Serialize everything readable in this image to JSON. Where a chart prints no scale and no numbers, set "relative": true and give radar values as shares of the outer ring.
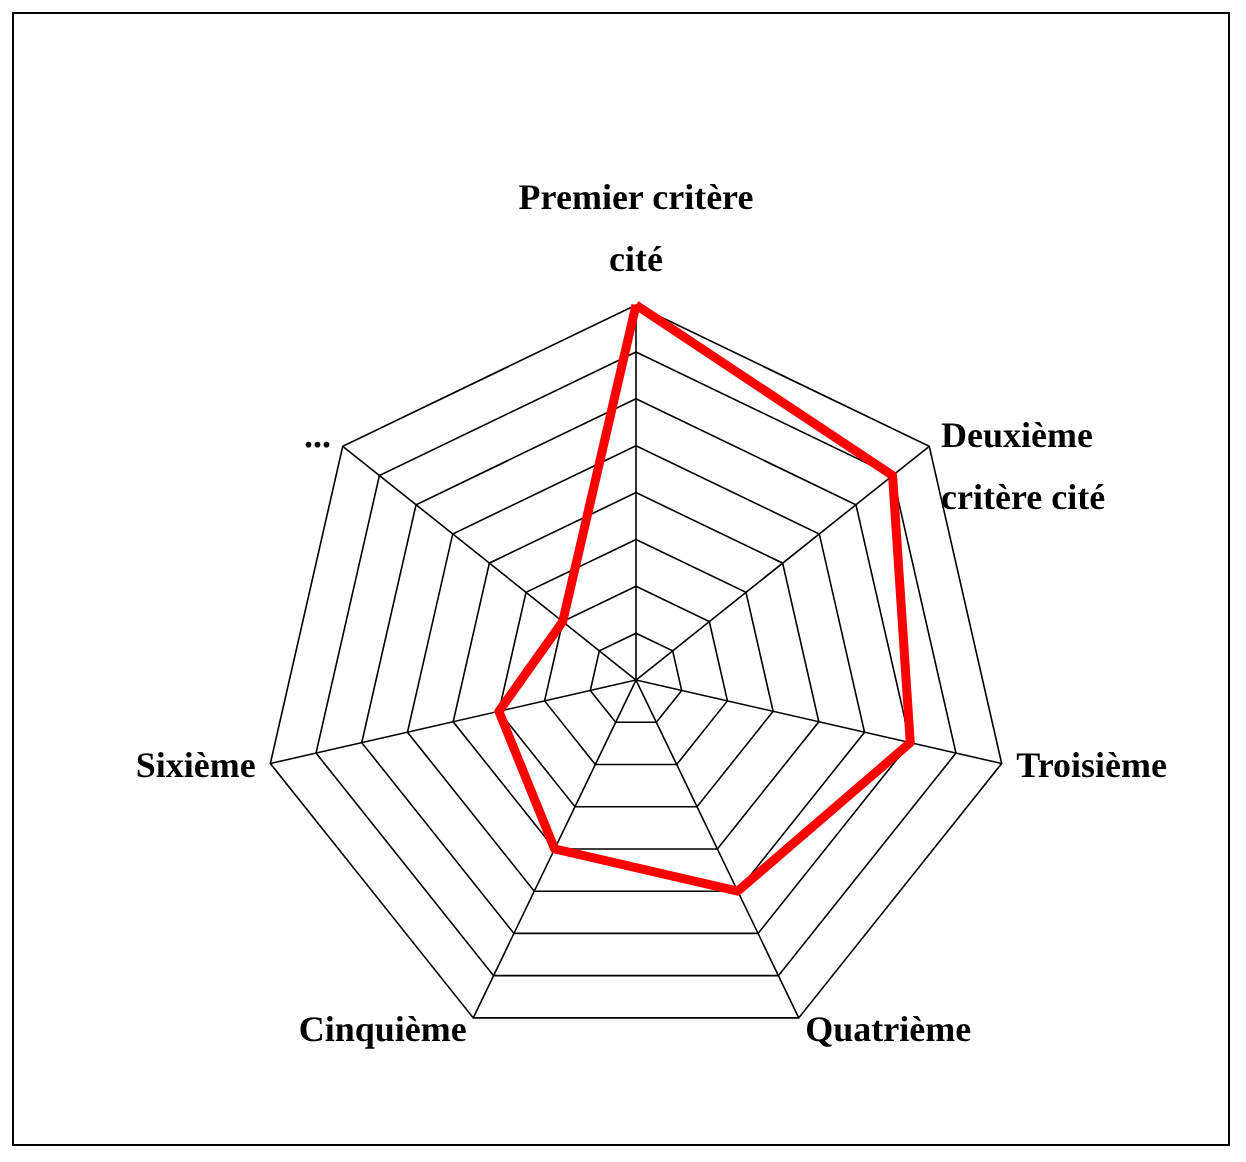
{
  "chart_data": {
    "type": "radar",
    "relative": true,
    "grid": true,
    "categories": [
      "Premier critère cité",
      "Deuxième critère cité",
      "Troisième",
      "Quatrième",
      "Cinquième",
      "Sixième",
      "..."
    ],
    "series": [
      {
        "color": "#ff0000",
        "values": [
          1,
          0.875,
          0.75,
          0.625,
          0.5,
          0.375,
          0.25
        ]
      }
    ]
  }
}
